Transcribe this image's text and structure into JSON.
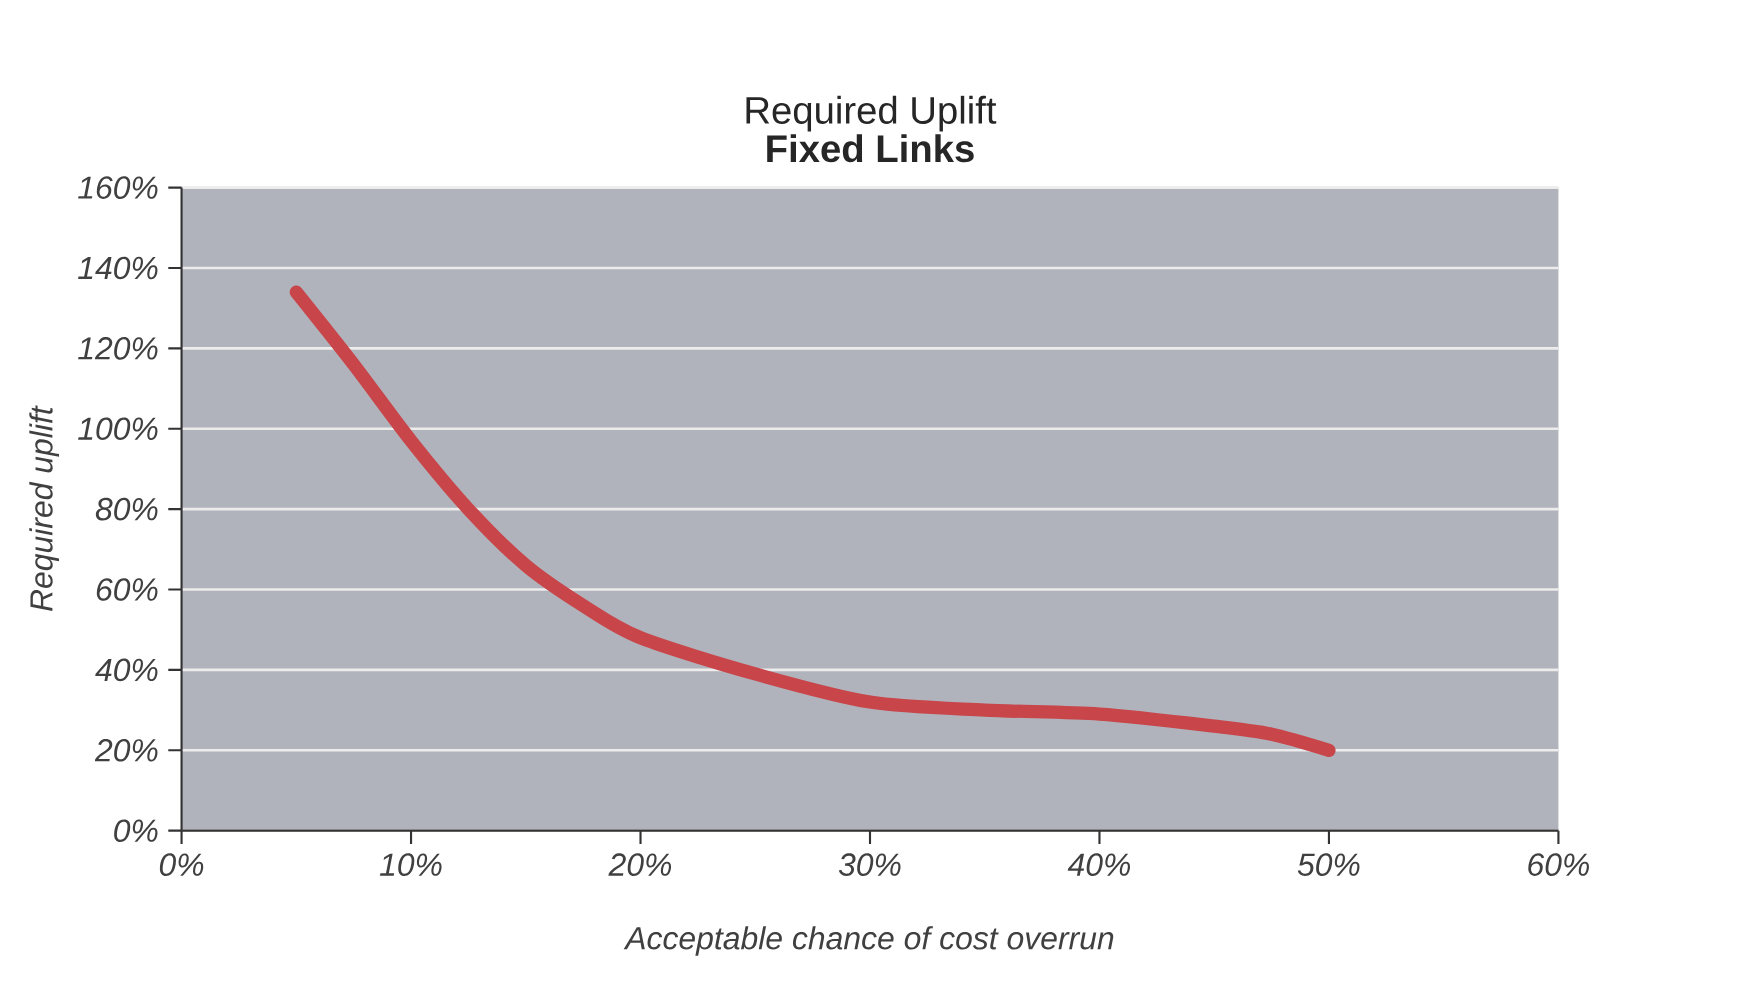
{
  "chart_data": {
    "type": "line",
    "title": "Required Uplift",
    "subtitle": "Fixed Links",
    "xlabel": "Acceptable chance of cost overrun",
    "ylabel": "Required uplift",
    "series": [
      {
        "color": "#c8454a",
        "x": [
          5,
          7.5,
          10,
          12.5,
          15,
          17.5,
          20,
          25,
          30,
          35,
          40,
          45,
          47.5,
          50
        ],
        "values": [
          134,
          116,
          97,
          80,
          66,
          56,
          48,
          39,
          32,
          30,
          29,
          26,
          24,
          20
        ]
      }
    ],
    "xlim": [
      0,
      60
    ],
    "ylim": [
      0,
      160
    ],
    "xticks": [
      {
        "value": 0,
        "label": "0%"
      },
      {
        "value": 10,
        "label": "10%"
      },
      {
        "value": 20,
        "label": "20%"
      },
      {
        "value": 30,
        "label": "30%"
      },
      {
        "value": 40,
        "label": "40%"
      },
      {
        "value": 50,
        "label": "50%"
      },
      {
        "value": 60,
        "label": "60%"
      }
    ],
    "yticks": [
      {
        "value": 0,
        "label": "0%"
      },
      {
        "value": 20,
        "label": "20%"
      },
      {
        "value": 40,
        "label": "40%"
      },
      {
        "value": 60,
        "label": "60%"
      },
      {
        "value": 80,
        "label": "80%"
      },
      {
        "value": 100,
        "label": "100%"
      },
      {
        "value": 120,
        "label": "120%"
      },
      {
        "value": 140,
        "label": "140%"
      },
      {
        "value": 160,
        "label": "160%"
      }
    ],
    "grid": "y",
    "marker": "none",
    "line_style": "solid"
  }
}
